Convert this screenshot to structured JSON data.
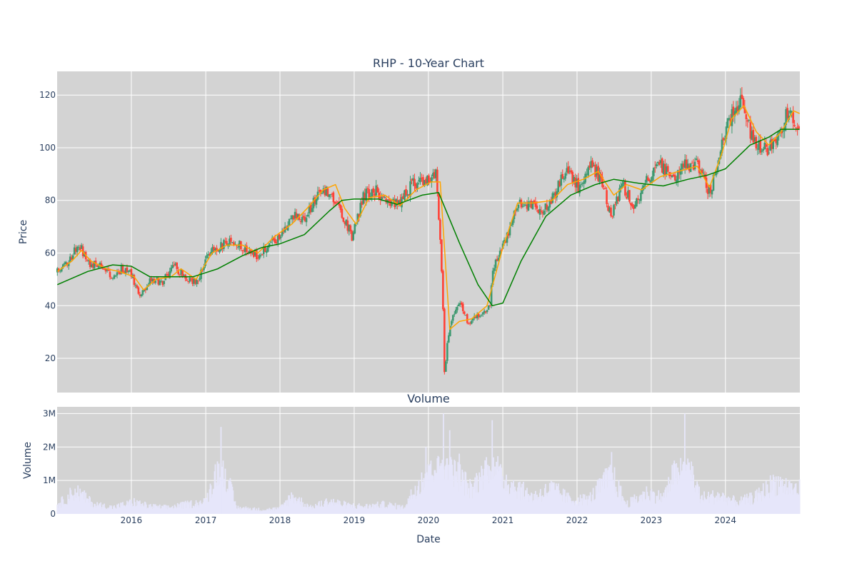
{
  "colors": {
    "plot_background": "#d3d3d3",
    "gridline": "#ffffff",
    "increasing": "#3d9970",
    "decreasing": "#ff4136",
    "ma_short": "#ffa500",
    "ma_long": "#008000",
    "volume": "#e6e6fa",
    "text": "#2a3f5f"
  },
  "chart_data": [
    {
      "type": "candlestick",
      "title": "RHP - 10-Year Chart",
      "ylabel": "Price",
      "xlabel": "",
      "xlim": [
        "2015-01-01",
        "2025-01-01"
      ],
      "ylim": [
        7,
        129
      ],
      "grid": true,
      "y_ticks": [
        20,
        40,
        60,
        80,
        100,
        120
      ],
      "x_ticks": [
        "2016",
        "2017",
        "2018",
        "2019",
        "2020",
        "2021",
        "2022",
        "2023",
        "2024"
      ],
      "series": [
        {
          "kind": "candlestick",
          "points": [
            [
              "2015-01-02",
              53
            ],
            [
              "2015-03-01",
              57
            ],
            [
              "2015-04-15",
              64
            ],
            [
              "2015-06-01",
              56
            ],
            [
              "2015-08-01",
              55
            ],
            [
              "2015-10-01",
              51
            ],
            [
              "2015-11-15",
              54
            ],
            [
              "2016-01-01",
              52
            ],
            [
              "2016-02-10",
              43
            ],
            [
              "2016-04-01",
              50
            ],
            [
              "2016-06-01",
              49
            ],
            [
              "2016-08-01",
              55
            ],
            [
              "2016-10-01",
              50
            ],
            [
              "2016-11-20",
              49
            ],
            [
              "2017-01-15",
              60
            ],
            [
              "2017-03-15",
              63
            ],
            [
              "2017-05-15",
              64
            ],
            [
              "2017-07-15",
              62
            ],
            [
              "2017-09-15",
              59
            ],
            [
              "2017-11-01",
              63
            ],
            [
              "2018-01-15",
              67
            ],
            [
              "2018-03-01",
              75
            ],
            [
              "2018-05-01",
              72
            ],
            [
              "2018-06-15",
              80
            ],
            [
              "2018-09-01",
              84
            ],
            [
              "2018-10-15",
              78
            ],
            [
              "2018-12-24",
              66
            ],
            [
              "2019-02-15",
              82
            ],
            [
              "2019-04-15",
              84
            ],
            [
              "2019-06-15",
              78
            ],
            [
              "2019-08-15",
              80
            ],
            [
              "2019-10-15",
              86
            ],
            [
              "2019-12-15",
              88
            ],
            [
              "2020-02-10",
              90
            ],
            [
              "2020-03-10",
              48
            ],
            [
              "2020-03-20",
              15
            ],
            [
              "2020-04-15",
              33
            ],
            [
              "2020-06-01",
              42
            ],
            [
              "2020-07-15",
              33
            ],
            [
              "2020-09-15",
              37
            ],
            [
              "2020-11-01",
              40
            ],
            [
              "2020-11-10",
              53
            ],
            [
              "2021-01-15",
              65
            ],
            [
              "2021-03-15",
              79
            ],
            [
              "2021-05-15",
              78
            ],
            [
              "2021-07-15",
              76
            ],
            [
              "2021-09-15",
              82
            ],
            [
              "2021-11-01",
              91
            ],
            [
              "2022-01-15",
              85
            ],
            [
              "2022-03-15",
              93
            ],
            [
              "2022-05-01",
              88
            ],
            [
              "2022-06-15",
              74
            ],
            [
              "2022-08-15",
              86
            ],
            [
              "2022-10-01",
              78
            ],
            [
              "2022-12-01",
              86
            ],
            [
              "2023-02-01",
              94
            ],
            [
              "2023-04-15",
              88
            ],
            [
              "2023-06-01",
              93
            ],
            [
              "2023-08-15",
              94
            ],
            [
              "2023-10-15",
              83
            ],
            [
              "2023-12-01",
              96
            ],
            [
              "2024-01-15",
              110
            ],
            [
              "2024-03-15",
              118
            ],
            [
              "2024-05-15",
              103
            ],
            [
              "2024-07-15",
              99
            ],
            [
              "2024-09-01",
              103
            ],
            [
              "2024-11-15",
              115
            ],
            [
              "2024-12-31",
              106
            ]
          ]
        },
        {
          "name": "",
          "kind": "line",
          "color_key": "ma_short",
          "points": [
            [
              "2015-01-02",
              53
            ],
            [
              "2015-03-15",
              57
            ],
            [
              "2015-05-01",
              61
            ],
            [
              "2015-06-15",
              57
            ],
            [
              "2015-09-01",
              54
            ],
            [
              "2015-11-01",
              53
            ],
            [
              "2016-01-15",
              51
            ],
            [
              "2016-03-01",
              46
            ],
            [
              "2016-05-01",
              50
            ],
            [
              "2016-07-15",
              51
            ],
            [
              "2016-09-01",
              54
            ],
            [
              "2016-11-15",
              50
            ],
            [
              "2017-02-01",
              60
            ],
            [
              "2017-04-15",
              63
            ],
            [
              "2017-07-01",
              63
            ],
            [
              "2017-09-15",
              60
            ],
            [
              "2017-12-01",
              66
            ],
            [
              "2018-03-01",
              71
            ],
            [
              "2018-05-15",
              77
            ],
            [
              "2018-08-01",
              84
            ],
            [
              "2018-10-01",
              86
            ],
            [
              "2018-11-15",
              77
            ],
            [
              "2019-01-10",
              71
            ],
            [
              "2019-03-15",
              81
            ],
            [
              "2019-06-01",
              82
            ],
            [
              "2019-08-15",
              78
            ],
            [
              "2019-11-01",
              84
            ],
            [
              "2020-01-15",
              87
            ],
            [
              "2020-02-28",
              87
            ],
            [
              "2020-04-15",
              31
            ],
            [
              "2020-06-01",
              34
            ],
            [
              "2020-08-01",
              35
            ],
            [
              "2020-10-15",
              40
            ],
            [
              "2021-01-01",
              62
            ],
            [
              "2021-03-15",
              79
            ],
            [
              "2021-06-01",
              79
            ],
            [
              "2021-09-01",
              80
            ],
            [
              "2021-11-15",
              86
            ],
            [
              "2022-02-01",
              88
            ],
            [
              "2022-04-15",
              91
            ],
            [
              "2022-07-01",
              82
            ],
            [
              "2022-09-01",
              86
            ],
            [
              "2022-11-15",
              84
            ],
            [
              "2023-02-15",
              89
            ],
            [
              "2023-05-15",
              91
            ],
            [
              "2023-08-15",
              93
            ],
            [
              "2023-10-15",
              85
            ],
            [
              "2023-12-15",
              98
            ],
            [
              "2024-02-01",
              111
            ],
            [
              "2024-04-01",
              116
            ],
            [
              "2024-06-01",
              106
            ],
            [
              "2024-08-01",
              101
            ],
            [
              "2024-10-01",
              106
            ],
            [
              "2024-12-01",
              114
            ],
            [
              "2024-12-31",
              113
            ]
          ]
        },
        {
          "name": "",
          "kind": "line",
          "color_key": "ma_long",
          "points": [
            [
              "2015-01-02",
              48
            ],
            [
              "2015-06-01",
              53
            ],
            [
              "2015-10-01",
              55.5
            ],
            [
              "2016-01-01",
              55
            ],
            [
              "2016-04-01",
              51
            ],
            [
              "2016-08-01",
              51
            ],
            [
              "2016-11-01",
              51
            ],
            [
              "2017-03-01",
              54
            ],
            [
              "2017-07-01",
              59
            ],
            [
              "2017-10-01",
              62
            ],
            [
              "2018-01-01",
              63.5
            ],
            [
              "2018-05-01",
              67
            ],
            [
              "2018-09-01",
              76
            ],
            [
              "2018-11-01",
              80
            ],
            [
              "2019-01-01",
              80.5
            ],
            [
              "2019-05-01",
              80.5
            ],
            [
              "2019-08-01",
              78.5
            ],
            [
              "2019-12-01",
              82
            ],
            [
              "2020-02-20",
              83
            ],
            [
              "2020-06-01",
              64
            ],
            [
              "2020-09-01",
              48
            ],
            [
              "2020-11-10",
              40
            ],
            [
              "2021-01-01",
              41
            ],
            [
              "2021-04-01",
              57
            ],
            [
              "2021-08-01",
              74
            ],
            [
              "2021-12-01",
              82
            ],
            [
              "2022-04-01",
              86
            ],
            [
              "2022-07-01",
              88
            ],
            [
              "2022-11-01",
              86.5
            ],
            [
              "2023-03-01",
              85.5
            ],
            [
              "2023-07-01",
              88
            ],
            [
              "2023-10-01",
              89.5
            ],
            [
              "2024-01-01",
              92
            ],
            [
              "2024-05-01",
              101
            ],
            [
              "2024-08-01",
              104
            ],
            [
              "2024-10-01",
              107
            ],
            [
              "2024-12-31",
              107
            ]
          ]
        }
      ]
    },
    {
      "type": "bar",
      "title": "Volume",
      "ylabel": "Volume",
      "xlabel": "Date",
      "xlim": [
        "2015-01-01",
        "2025-01-01"
      ],
      "ylim": [
        0,
        3200000
      ],
      "grid": true,
      "y_ticks": [
        "0",
        "1M",
        "2M",
        "3M"
      ],
      "y_tick_values": [
        0,
        1000000,
        2000000,
        3000000
      ],
      "x_ticks": [
        "2016",
        "2017",
        "2018",
        "2019",
        "2020",
        "2021",
        "2022",
        "2023",
        "2024"
      ],
      "values": [
        [
          "2015-01-15",
          500000
        ],
        [
          "2015-04-01",
          1100000
        ],
        [
          "2015-07-01",
          450000
        ],
        [
          "2015-10-01",
          300000
        ],
        [
          "2016-01-15",
          550000
        ],
        [
          "2016-04-01",
          350000
        ],
        [
          "2016-07-01",
          300000
        ],
        [
          "2016-10-01",
          450000
        ],
        [
          "2017-01-01",
          550000
        ],
        [
          "2017-03-17",
          2600000
        ],
        [
          "2017-06-01",
          300000
        ],
        [
          "2017-10-01",
          200000
        ],
        [
          "2018-01-01",
          250000
        ],
        [
          "2018-03-01",
          850000
        ],
        [
          "2018-06-01",
          300000
        ],
        [
          "2018-09-01",
          600000
        ],
        [
          "2018-12-01",
          400000
        ],
        [
          "2019-03-01",
          350000
        ],
        [
          "2019-06-01",
          450000
        ],
        [
          "2019-09-01",
          300000
        ],
        [
          "2019-12-20",
          2000000
        ],
        [
          "2020-03-15",
          3000000
        ],
        [
          "2020-04-15",
          2500000
        ],
        [
          "2020-06-01",
          1800000
        ],
        [
          "2020-08-01",
          1100000
        ],
        [
          "2020-11-10",
          2800000
        ],
        [
          "2021-01-01",
          1700000
        ],
        [
          "2021-03-01",
          1300000
        ],
        [
          "2021-06-01",
          800000
        ],
        [
          "2021-09-01",
          1200000
        ],
        [
          "2021-12-01",
          650000
        ],
        [
          "2022-03-01",
          700000
        ],
        [
          "2022-06-20",
          1850000
        ],
        [
          "2022-09-01",
          450000
        ],
        [
          "2022-12-15",
          1000000
        ],
        [
          "2023-03-01",
          750000
        ],
        [
          "2023-06-15",
          3000000
        ],
        [
          "2023-09-01",
          750000
        ],
        [
          "2023-12-01",
          850000
        ],
        [
          "2024-03-01",
          550000
        ],
        [
          "2024-06-01",
          800000
        ],
        [
          "2024-09-01",
          1500000
        ],
        [
          "2024-12-15",
          1150000
        ]
      ]
    }
  ]
}
